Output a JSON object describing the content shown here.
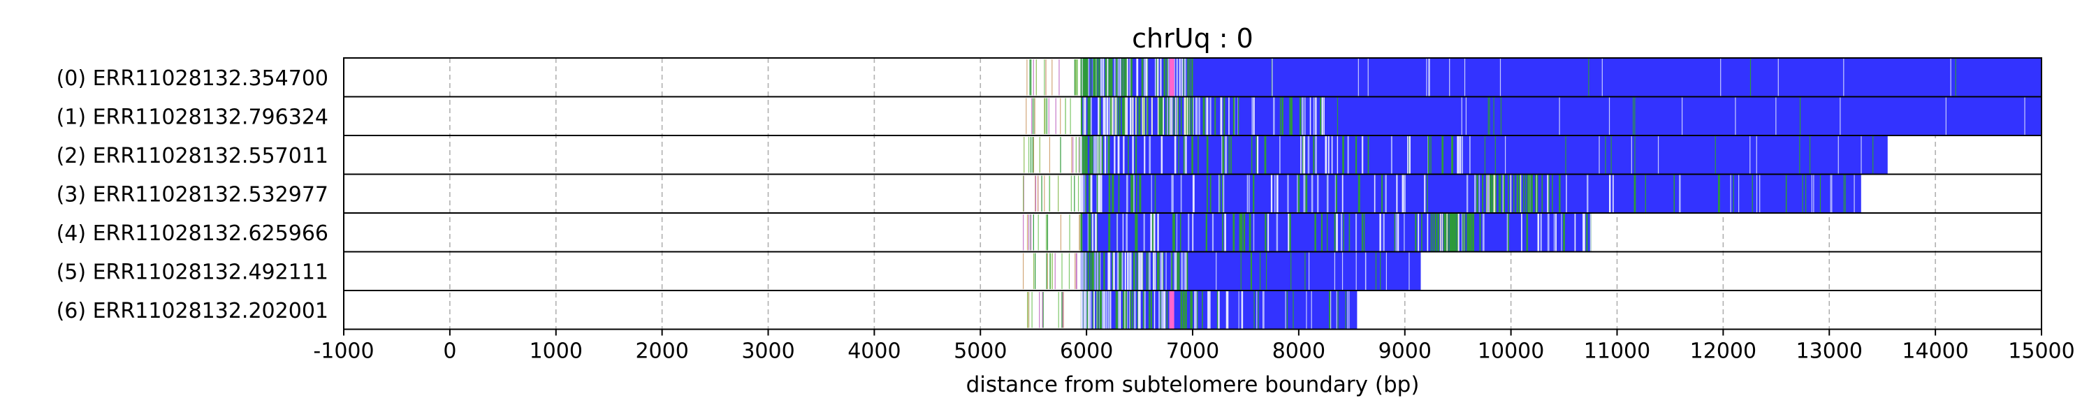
{
  "chart_data": {
    "type": "bar",
    "title": "chrUq : 0",
    "xlabel": "distance from subtelomere boundary (bp)",
    "ylabel": "",
    "xlim": [
      -1000,
      15000
    ],
    "x_ticks": [
      -1000,
      0,
      1000,
      2000,
      3000,
      4000,
      5000,
      6000,
      7000,
      8000,
      9000,
      10000,
      11000,
      12000,
      13000,
      14000,
      15000
    ],
    "grid": "vertical dashed",
    "colors": {
      "repeat": "#3333ff",
      "background": "#ffffff",
      "green": "#2e9a3a",
      "pink": "#ff66cc",
      "light": "#aab2ff"
    },
    "reads": [
      {
        "label": "(0) ERR11028132.354700",
        "start": 5950,
        "end": 15000,
        "sparse_start": 5400,
        "variant_end": 7000,
        "green_cluster": [],
        "pink_at": 6800
      },
      {
        "label": "(1) ERR11028132.796324",
        "start": 5950,
        "end": 15000,
        "sparse_start": 5400,
        "variant_end": 8300,
        "green_cluster": [
          6200,
          7000
        ],
        "pink_at": null
      },
      {
        "label": "(2) ERR11028132.557011",
        "start": 5950,
        "end": 13550,
        "sparse_start": 5400,
        "variant_end": 9700,
        "green_cluster": [],
        "pink_at": null
      },
      {
        "label": "(3) ERR11028132.532977",
        "start": 5950,
        "end": 13300,
        "sparse_start": 5400,
        "variant_end": 12000,
        "green_cluster": [
          9750,
          10300
        ],
        "pink_at": null
      },
      {
        "label": "(4) ERR11028132.625966",
        "start": 5950,
        "end": 10750,
        "sparse_start": 5400,
        "variant_end": 10750,
        "green_cluster": [
          9200,
          9650
        ],
        "pink_at": null
      },
      {
        "label": "(5) ERR11028132.492111",
        "start": 5950,
        "end": 9150,
        "sparse_start": 5400,
        "variant_end": 7000,
        "green_cluster": [],
        "pink_at": null
      },
      {
        "label": "(6) ERR11028132.202001",
        "start": 5950,
        "end": 8550,
        "sparse_start": 5400,
        "variant_end": 7500,
        "green_cluster": [],
        "pink_at": 6800
      }
    ]
  }
}
